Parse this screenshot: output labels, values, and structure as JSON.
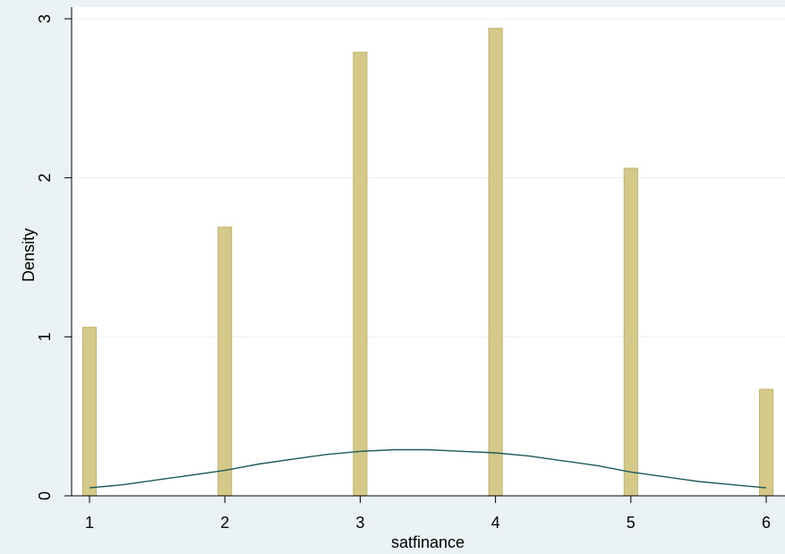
{
  "chart_data": {
    "type": "bar",
    "title": "",
    "xlabel": "satfinance",
    "ylabel": "Density",
    "x_ticks": [
      "1",
      "2",
      "3",
      "4",
      "5",
      "6"
    ],
    "y_ticks": [
      "0",
      "1",
      "2",
      "3"
    ],
    "xlim": [
      0.9,
      6.1
    ],
    "ylim": [
      0,
      3.0
    ],
    "grid": true,
    "legend": "none",
    "bars": {
      "x": [
        1,
        2,
        3,
        4,
        5,
        6
      ],
      "values": [
        1.06,
        1.69,
        2.79,
        2.94,
        2.06,
        0.67
      ],
      "width": 0.1
    },
    "curve": {
      "name": "",
      "x": [
        1.0,
        1.25,
        1.5,
        1.75,
        2.0,
        2.25,
        2.5,
        2.75,
        3.0,
        3.25,
        3.5,
        3.75,
        4.0,
        4.25,
        4.5,
        4.75,
        5.0,
        5.25,
        5.5,
        5.75,
        6.0
      ],
      "y": [
        0.05,
        0.07,
        0.1,
        0.13,
        0.16,
        0.2,
        0.23,
        0.26,
        0.28,
        0.29,
        0.29,
        0.28,
        0.27,
        0.25,
        0.22,
        0.19,
        0.15,
        0.12,
        0.09,
        0.07,
        0.05
      ]
    },
    "colors": {
      "background": "#eaf2f3",
      "plot_area": "#ffffff",
      "bar_fill": "#d5c98a",
      "bar_edge": "#c2b36b",
      "curve": "#1c5a5a",
      "grid": "#e8eef0"
    }
  }
}
